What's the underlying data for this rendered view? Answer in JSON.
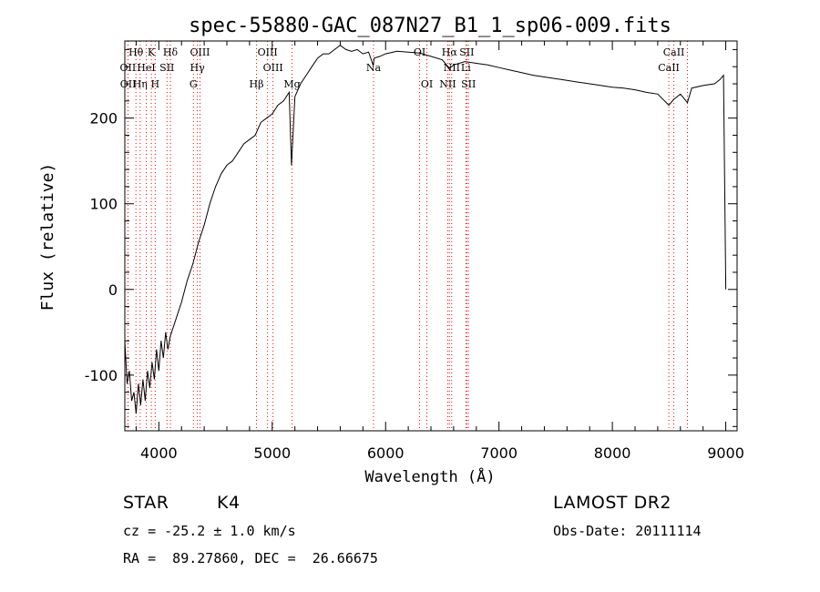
{
  "chart_data": {
    "type": "line",
    "title": "spec-55880-GAC_087N27_B1_1_sp06-009.fits",
    "xlabel": "Wavelength (Å)",
    "ylabel": "Flux (relative)",
    "xlim": [
      3700,
      9100
    ],
    "ylim": [
      -165,
      290
    ],
    "x_ticks": [
      4000,
      5000,
      6000,
      7000,
      8000,
      9000
    ],
    "y_ticks": [
      -100,
      0,
      100,
      200
    ],
    "grid": false,
    "series": [
      {
        "x": [
          3700,
          3720,
          3740,
          3760,
          3780,
          3800,
          3820,
          3840,
          3860,
          3880,
          3900,
          3920,
          3940,
          3960,
          3980,
          4000,
          4020,
          4040,
          4060,
          4080,
          4100,
          4150,
          4200,
          4250,
          4300,
          4350,
          4400,
          4450,
          4500,
          4550,
          4600,
          4650,
          4700,
          4750,
          4800,
          4850,
          4900,
          4950,
          5000,
          5050,
          5100,
          5150,
          5170,
          5200,
          5250,
          5300,
          5350,
          5400,
          5450,
          5500,
          5550,
          5600,
          5650,
          5700,
          5750,
          5800,
          5850,
          5890,
          5900,
          5950,
          6000,
          6100,
          6200,
          6300,
          6400,
          6500,
          6563,
          6600,
          6700,
          6800,
          6900,
          7000,
          7100,
          7200,
          7300,
          7400,
          7500,
          7600,
          7700,
          7800,
          7900,
          8000,
          8100,
          8200,
          8300,
          8400,
          8498,
          8542,
          8600,
          8662,
          8700,
          8800,
          8900,
          8950,
          8980,
          9000
        ],
        "values": [
          -60,
          -110,
          -95,
          -130,
          -120,
          -145,
          -110,
          -135,
          -105,
          -130,
          -95,
          -115,
          -85,
          -105,
          -70,
          -95,
          -60,
          -80,
          -50,
          -70,
          -55,
          -35,
          -15,
          10,
          30,
          55,
          75,
          100,
          120,
          135,
          145,
          150,
          160,
          170,
          175,
          180,
          195,
          200,
          205,
          215,
          220,
          230,
          145,
          225,
          240,
          250,
          260,
          270,
          275,
          275,
          280,
          285,
          280,
          278,
          280,
          275,
          277,
          262,
          270,
          272,
          275,
          278,
          277,
          276,
          272,
          268,
          258,
          262,
          266,
          264,
          262,
          259,
          256,
          253,
          250,
          248,
          246,
          244,
          242,
          240,
          238,
          236,
          235,
          233,
          230,
          228,
          215,
          222,
          228,
          218,
          235,
          238,
          240,
          245,
          250,
          0
        ],
        "vertical_drop": [
          9000,
          255,
          0
        ]
      }
    ],
    "line_markers": [
      {
        "name": "Hθ",
        "wavelength": 3798
      },
      {
        "name": "K",
        "wavelength": 3934
      },
      {
        "name": "Hδ",
        "wavelength": 4102
      },
      {
        "name": "OIII",
        "wavelength": 4363
      },
      {
        "name": "OIII",
        "wavelength": 4959
      },
      {
        "name": "OI",
        "wavelength": 6300
      },
      {
        "name": "Hα",
        "wavelength": 6563
      },
      {
        "name": "SII",
        "wavelength": 6716
      },
      {
        "name": "CaII",
        "wavelength": 8542
      },
      {
        "name": "OII",
        "wavelength": 3727
      },
      {
        "name": "HeI",
        "wavelength": 3889
      },
      {
        "name": "SII",
        "wavelength": 4072
      },
      {
        "name": "Hγ",
        "wavelength": 4340
      },
      {
        "name": "OIII",
        "wavelength": 5007
      },
      {
        "name": "Na",
        "wavelength": 5893
      },
      {
        "name": "NII",
        "wavelength": 6583
      },
      {
        "name": "Li",
        "wavelength": 6708
      },
      {
        "name": "CaII",
        "wavelength": 8498
      },
      {
        "name": "OII",
        "wavelength": 3729
      },
      {
        "name": "Hη",
        "wavelength": 3835
      },
      {
        "name": "H",
        "wavelength": 3968
      },
      {
        "name": "G",
        "wavelength": 4305
      },
      {
        "name": "Hβ",
        "wavelength": 4861
      },
      {
        "name": "Mg",
        "wavelength": 5175
      },
      {
        "name": "OI",
        "wavelength": 6364
      },
      {
        "name": "NII",
        "wavelength": 6548
      },
      {
        "name": "SII",
        "wavelength": 6731
      },
      {
        "name": "CaII",
        "wavelength": 8662
      }
    ],
    "colors": {
      "spectrum": "#000000",
      "marker_line": "#ff0000",
      "axes": "#000000"
    }
  },
  "info": {
    "object_class": "STAR",
    "subclass": "K4",
    "survey": "LAMOST DR2",
    "redshift": "cz = -25.2 ± 1.0 km/s",
    "obs_date": "Obs-Date: 20111114",
    "coords": "RA =  89.27860, DEC =  26.66675"
  }
}
